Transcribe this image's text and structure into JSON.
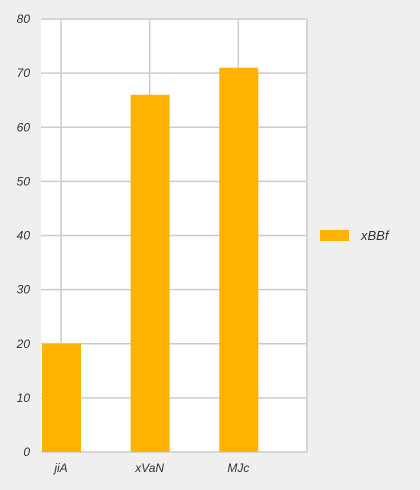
{
  "chart_data": {
    "type": "bar",
    "categories": [
      "jiA",
      "xVaN",
      "MJc"
    ],
    "series": [
      {
        "name": "xBBf",
        "values": [
          20,
          66,
          71
        ],
        "color": "#FFB300"
      }
    ],
    "title": "",
    "xlabel": "",
    "ylabel": "",
    "ylim": [
      0,
      80
    ],
    "yticks": [
      0,
      10,
      20,
      30,
      40,
      50,
      60,
      70,
      80
    ],
    "grid": true,
    "legend_position": "right",
    "background_color": "#efefef",
    "plot_background_color": "#ffffff",
    "grid_color": "#cccccc"
  }
}
